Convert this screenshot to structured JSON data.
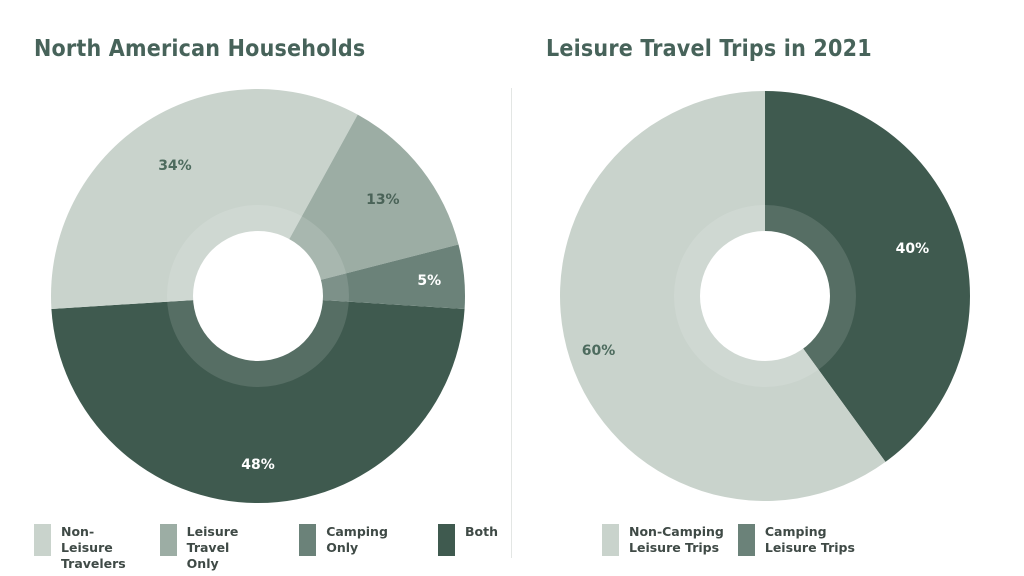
{
  "chart_data": [
    {
      "type": "pie",
      "title": "North American Households",
      "slices": [
        {
          "label": "Non-Leisure Travelers",
          "legend_text": "Non-Leisure\nTravelers",
          "value": 34,
          "value_label": "34%",
          "color": "#c9d3cc",
          "label_color": "#4d6b5e"
        },
        {
          "label": "Leisure Travel Only",
          "legend_text": "Leisure Travel\nOnly",
          "value": 13,
          "value_label": "13%",
          "color": "#9cada4",
          "label_color": "#4a6358"
        },
        {
          "label": "Camping Only",
          "legend_text": "Camping Only",
          "value": 5,
          "value_label": "5%",
          "color": "#6b8279",
          "label_color": "#ffffff"
        },
        {
          "label": "Both",
          "legend_text": "Both",
          "value": 48,
          "value_label": "48%",
          "color": "#3f5a4f",
          "label_color": "#ffffff"
        }
      ]
    },
    {
      "type": "pie",
      "title": "Leisure Travel Trips in 2021",
      "slices": [
        {
          "label": "Non-Camping Leisure Trips",
          "legend_text": "Non-Camping\nLeisure Trips",
          "value": 60,
          "value_label": "60%",
          "color": "#c9d3cc",
          "label_color": "#4d6b5e"
        },
        {
          "label": "Camping Leisure Trips",
          "legend_text": "Camping\nLeisure Trips",
          "value": 40,
          "value_label": "40%",
          "color": "#3f5a4f",
          "label_color": "#ffffff"
        }
      ],
      "legend_colors": [
        "#c9d3cc",
        "#6b8279"
      ]
    }
  ]
}
